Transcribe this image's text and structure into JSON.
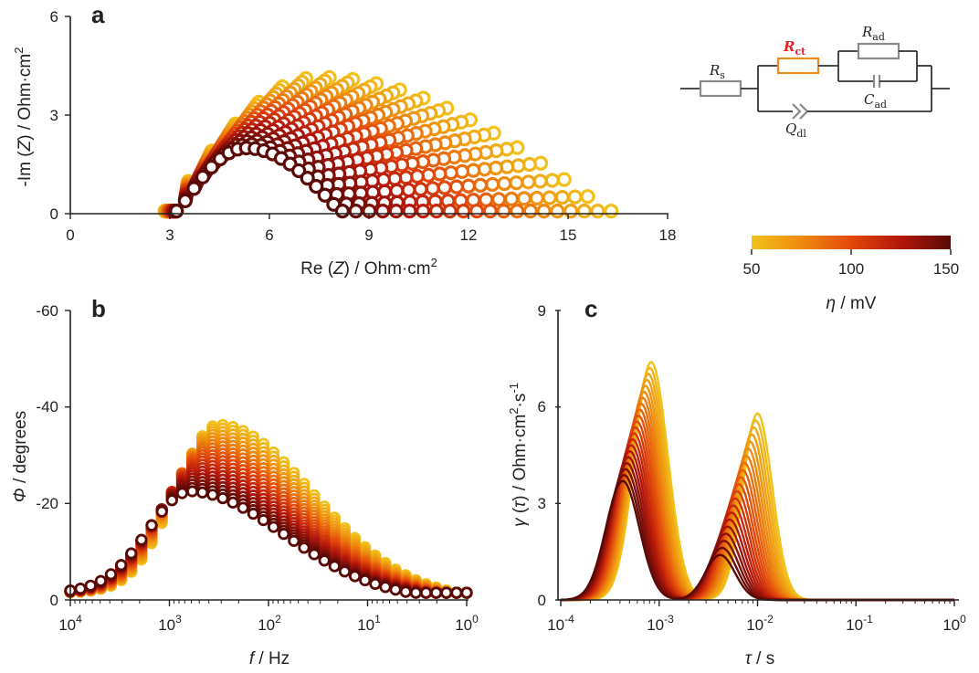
{
  "figure": {
    "panels": {
      "a": "a",
      "b": "b",
      "c": "c"
    },
    "colorbar": {
      "label_symbol": "η",
      "label_unit": " / mV",
      "ticks": [
        "50",
        "100",
        "150"
      ],
      "range": [
        50,
        150
      ],
      "colors": [
        "#f2c21a",
        "#ee8a0e",
        "#e2480a",
        "#b3160b",
        "#5a0a06"
      ]
    },
    "circuit": {
      "Rs_main": "R",
      "Rs_sub": "s",
      "Rct_main": "R",
      "Rct_sub": "ct",
      "Rad_main": "R",
      "Rad_sub": "ad",
      "Cad_main": "C",
      "Cad_sub": "ad",
      "Qdl_main": "Q",
      "Qdl_sub": "dl",
      "Rct_color": "#e8202a",
      "Rct_box_color": "#ee8a22"
    }
  },
  "chart_data": [
    {
      "panel": "a",
      "type": "scatter",
      "title": "",
      "xlabel_pre": "Re (",
      "xlabel_var": "Z",
      "xlabel_post": ") / Ohm·cm",
      "xlabel_sup": "2",
      "ylabel_pre": "-Im (",
      "ylabel_var": "Z",
      "ylabel_post": ") / Ohm·cm",
      "ylabel_sup": "2",
      "xlim": [
        0,
        18
      ],
      "ylim": [
        0,
        6
      ],
      "xticks": [
        "0",
        "3",
        "6",
        "9",
        "12",
        "15",
        "18"
      ],
      "yticks": [
        "0",
        "3",
        "6"
      ],
      "series_count": 21,
      "series_rule": "Nyquist arcs: Rs ≈ 2.85–3.2 Ohm·cm², first arc peak ≈ 2.0–4.1 at Re ≈ 5.3–7.5, total Re span to ≈ 8.2–16.3 as overpotential decreases from 150 to 50 mV",
      "eta_mV": [
        50,
        55,
        60,
        65,
        70,
        75,
        80,
        85,
        90,
        95,
        100,
        105,
        110,
        115,
        120,
        125,
        130,
        135,
        140,
        145,
        150
      ]
    },
    {
      "panel": "b",
      "type": "scatter",
      "title": "",
      "xlabel_var": "f",
      "xlabel_post": " / Hz",
      "ylabel_var": "Φ",
      "ylabel_post": " / degrees",
      "xscale": "log",
      "xlim_exp": [
        4,
        0
      ],
      "ylim": [
        0,
        -60
      ],
      "xticks_base": [
        "10",
        "10",
        "10",
        "10",
        "10"
      ],
      "xticks_exp": [
        "4",
        "3",
        "2",
        "1",
        "0"
      ],
      "yticks": [
        "0",
        "-20",
        "-40",
        "-60"
      ],
      "series_count": 21,
      "series_rule": "Bode phase: peak ≈ -36° at f ≈ 300 Hz (η = 50 mV) decreasing to ≈ -22° at f ≈ 600 Hz (η = 150 mV); → ≈ -2° at 1 Hz"
    },
    {
      "panel": "c",
      "type": "line",
      "title": "",
      "xlabel_var": "τ",
      "xlabel_post": " / s",
      "ylabel_var": "γ",
      "ylabel_mid": " (",
      "ylabel_var2": "τ",
      "ylabel_post": ") / Ohm·cm",
      "ylabel_sup1": "2",
      "ylabel_mid2": "·s",
      "ylabel_sup2": "-1",
      "xscale": "log",
      "xlim_exp": [
        -4,
        0
      ],
      "ylim": [
        0,
        9
      ],
      "xticks_base": [
        "10",
        "10",
        "10",
        "10",
        "10"
      ],
      "xticks_exp": [
        "-4",
        "-3",
        "-2",
        "-1",
        "0"
      ],
      "yticks": [
        "0",
        "3",
        "6",
        "9"
      ],
      "series_count": 21,
      "series_rule": "DRT: peak 1 height 7.4→3.7 at τ ≈ 1.2e-3→4.3e-4 s; peak 2 height 5.8→1.4 at τ ≈ 1.0e-2→4.2e-3 s (η 50→150 mV)"
    }
  ]
}
